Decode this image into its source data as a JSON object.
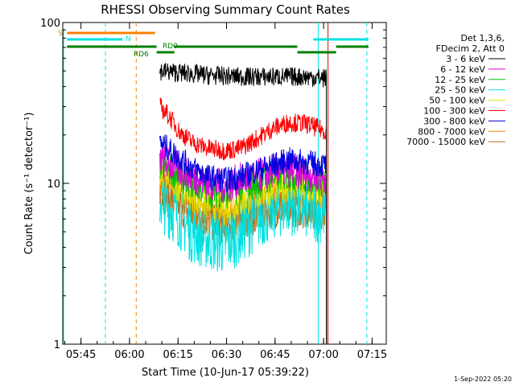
{
  "chart_data": {
    "type": "line",
    "title": "RHESSI Observing Summary Count Rates",
    "xlabel": "Start Time (10-Jun-17 05:39:22)",
    "ylabel": "Count Rate (s⁻¹ detector⁻¹)",
    "x_unit": "minutes after 05:39:22",
    "x_range_minutes": [
      0,
      100
    ],
    "yscale": "log",
    "ylim": [
      1,
      100
    ],
    "x_ticks": [
      {
        "label": "05:45",
        "minute": 5.63
      },
      {
        "label": "06:00",
        "minute": 20.63
      },
      {
        "label": "06:15",
        "minute": 35.63
      },
      {
        "label": "06:30",
        "minute": 50.63
      },
      {
        "label": "06:45",
        "minute": 65.63
      },
      {
        "label": "07:00",
        "minute": 80.63
      },
      {
        "label": "07:15",
        "minute": 95.63
      }
    ],
    "y_ticks": [
      {
        "label": "100",
        "value": 100
      },
      {
        "label": "10",
        "value": 10
      },
      {
        "label": "1",
        "value": 1
      }
    ],
    "legend_header": [
      "Det 1,3,6,",
      "FDecim 2, Att 0"
    ],
    "legend_position": "right",
    "series": [
      {
        "name": "3 - 6 keV",
        "color": "#000000",
        "points": [
          [
            30,
            50
          ],
          [
            35,
            49
          ],
          [
            45,
            47
          ],
          [
            55,
            46
          ],
          [
            65,
            46
          ],
          [
            75,
            46
          ],
          [
            81.5,
            45
          ]
        ]
      },
      {
        "name": "6 - 12 keV",
        "color": "#e000e0",
        "points": [
          [
            30,
            14
          ],
          [
            35,
            12.5
          ],
          [
            40,
            11
          ],
          [
            45,
            10
          ],
          [
            50,
            9.6
          ],
          [
            55,
            10.5
          ],
          [
            60,
            11
          ],
          [
            65,
            12
          ],
          [
            70,
            12
          ],
          [
            75,
            11.5
          ],
          [
            81.5,
            11
          ]
        ]
      },
      {
        "name": "12 - 25 keV",
        "color": "#00c000",
        "points": [
          [
            30,
            13
          ],
          [
            35,
            11.5
          ],
          [
            40,
            10
          ],
          [
            45,
            9
          ],
          [
            50,
            8.5
          ],
          [
            55,
            9.5
          ],
          [
            60,
            10
          ],
          [
            65,
            11
          ],
          [
            70,
            11.2
          ],
          [
            75,
            10.8
          ],
          [
            81.5,
            10.2
          ]
        ]
      },
      {
        "name": "25 - 50 keV",
        "color": "#00e0e0",
        "points": [
          [
            30,
            8
          ],
          [
            35,
            6.5
          ],
          [
            40,
            5
          ],
          [
            45,
            4.5
          ],
          [
            50,
            4.2
          ],
          [
            55,
            5
          ],
          [
            60,
            6
          ],
          [
            65,
            7
          ],
          [
            70,
            7.5
          ],
          [
            75,
            7
          ],
          [
            81.5,
            6.5
          ]
        ]
      },
      {
        "name": "50 - 100 keV",
        "color": "#e0e000",
        "points": [
          [
            30,
            12
          ],
          [
            35,
            10
          ],
          [
            40,
            8.5
          ],
          [
            45,
            7.5
          ],
          [
            50,
            7
          ],
          [
            55,
            7.8
          ],
          [
            60,
            8.5
          ],
          [
            65,
            9.5
          ],
          [
            70,
            9.8
          ],
          [
            75,
            9.3
          ],
          [
            81.5,
            9
          ]
        ]
      },
      {
        "name": "100 - 300 keV",
        "color": "#ff0000",
        "points": [
          [
            30,
            30
          ],
          [
            33,
            26
          ],
          [
            36,
            21
          ],
          [
            40,
            18
          ],
          [
            45,
            16.5
          ],
          [
            50,
            16
          ],
          [
            55,
            16.5
          ],
          [
            60,
            19
          ],
          [
            65,
            22
          ],
          [
            70,
            24
          ],
          [
            75,
            23.5
          ],
          [
            79,
            22
          ],
          [
            81.5,
            21
          ]
        ]
      },
      {
        "name": "300 - 800 keV",
        "color": "#0000e0",
        "points": [
          [
            30,
            18
          ],
          [
            35,
            15
          ],
          [
            40,
            12.5
          ],
          [
            45,
            11
          ],
          [
            50,
            10.5
          ],
          [
            55,
            11
          ],
          [
            60,
            12
          ],
          [
            65,
            13
          ],
          [
            70,
            14
          ],
          [
            75,
            13.5
          ],
          [
            81.5,
            13
          ]
        ]
      },
      {
        "name": "800 - 7000 keV",
        "color": "#ff8000",
        "points": [
          [
            30,
            10
          ],
          [
            35,
            8.5
          ],
          [
            40,
            7
          ],
          [
            45,
            6.5
          ],
          [
            50,
            6
          ],
          [
            55,
            6.5
          ],
          [
            60,
            7
          ],
          [
            65,
            7.5
          ],
          [
            70,
            7.8
          ],
          [
            75,
            7.5
          ],
          [
            81.5,
            7.2
          ]
        ]
      },
      {
        "name": "7000 - 15000 keV",
        "color": "#b07020",
        "points": [
          [
            30,
            9
          ],
          [
            35,
            7.5
          ],
          [
            40,
            6.5
          ],
          [
            45,
            6
          ],
          [
            50,
            5.5
          ],
          [
            55,
            6
          ],
          [
            60,
            6.5
          ],
          [
            65,
            7
          ],
          [
            70,
            7.2
          ],
          [
            75,
            7
          ],
          [
            81.5,
            6.8
          ]
        ]
      }
    ],
    "annotations": [
      {
        "label": "S",
        "color": "#ff8000"
      },
      {
        "label": "N",
        "color": "#00e0e0"
      },
      {
        "label": "RD6",
        "color": "#008000"
      },
      {
        "label": "RD0",
        "color": "#008000"
      }
    ],
    "grid": false
  },
  "footer": {
    "timestamp": "1-Sep-2022 05:20"
  }
}
